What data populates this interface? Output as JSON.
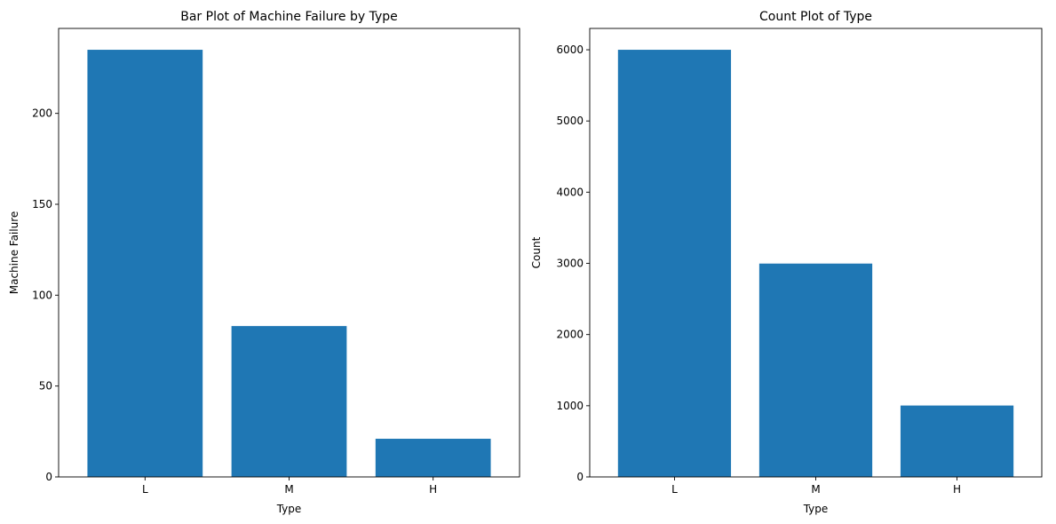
{
  "chart_data": [
    {
      "type": "bar",
      "title": "Bar Plot of Machine Failure by Type",
      "xlabel": "Type",
      "ylabel": "Machine Failure",
      "categories": [
        "L",
        "M",
        "H"
      ],
      "values": [
        235,
        83,
        21
      ],
      "ylim": [
        0,
        246.75
      ],
      "yticks": [
        0,
        50,
        100,
        150,
        200
      ],
      "ytick_labels": [
        "0",
        "50",
        "100",
        "150",
        "200"
      ],
      "grid": false,
      "bar_color": "#1f77b4"
    },
    {
      "type": "bar",
      "title": "Count Plot of Type",
      "xlabel": "Type",
      "ylabel": "Count",
      "categories": [
        "L",
        "M",
        "H"
      ],
      "values": [
        6000,
        2997,
        1003
      ],
      "ylim": [
        0,
        6300
      ],
      "yticks": [
        0,
        1000,
        2000,
        3000,
        4000,
        5000,
        6000
      ],
      "ytick_labels": [
        "0",
        "1000",
        "2000",
        "3000",
        "4000",
        "5000",
        "6000"
      ],
      "grid": false,
      "bar_color": "#1f77b4"
    }
  ]
}
